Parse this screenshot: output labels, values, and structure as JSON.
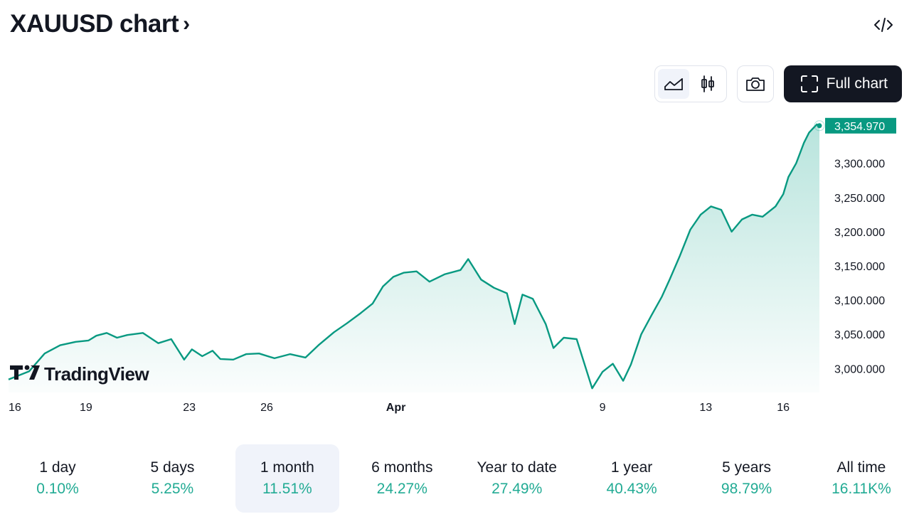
{
  "header": {
    "title": "XAUUSD chart",
    "chevron": "›",
    "embed_icon": "code-icon"
  },
  "toolbar": {
    "chart_types": [
      {
        "name": "area-chart-icon",
        "active": true
      },
      {
        "name": "candles-icon",
        "active": false
      }
    ],
    "snapshot_icon": "camera-icon",
    "full_chart_icon": "fullscreen-icon",
    "full_chart_label": "Full chart"
  },
  "watermark": {
    "text": "TradingView"
  },
  "colors": {
    "accent": "#22ab94",
    "line": "#089981",
    "text": "#131722",
    "button_dark": "#131722"
  },
  "periods": [
    {
      "label": "1 day",
      "value": "0.10%",
      "active": false
    },
    {
      "label": "5 days",
      "value": "5.25%",
      "active": false
    },
    {
      "label": "1 month",
      "value": "11.51%",
      "active": true
    },
    {
      "label": "6 months",
      "value": "24.27%",
      "active": false
    },
    {
      "label": "Year to date",
      "value": "27.49%",
      "active": false
    },
    {
      "label": "1 year",
      "value": "40.43%",
      "active": false
    },
    {
      "label": "5 years",
      "value": "98.79%",
      "active": false
    },
    {
      "label": "All time",
      "value": "16.11K%",
      "active": false
    }
  ],
  "chart_data": {
    "type": "area",
    "symbol": "XAUUSD",
    "last_value_label": "3,354.970",
    "ylim": [
      2965,
      3360
    ],
    "y_ticks": [
      {
        "value": 3300,
        "label": "3,300.000"
      },
      {
        "value": 3250,
        "label": "3,250.000"
      },
      {
        "value": 3200,
        "label": "3,200.000"
      },
      {
        "value": 3150,
        "label": "3,150.000"
      },
      {
        "value": 3100,
        "label": "3,100.000"
      },
      {
        "value": 3050,
        "label": "3,050.000"
      },
      {
        "value": 3000,
        "label": "3,000.000"
      }
    ],
    "x_ticks": [
      {
        "t": 0,
        "label": "16",
        "bold": false
      },
      {
        "t": 3,
        "label": "19",
        "bold": false
      },
      {
        "t": 7,
        "label": "23",
        "bold": false
      },
      {
        "t": 10,
        "label": "26",
        "bold": false
      },
      {
        "t": 15,
        "label": "Apr",
        "bold": true
      },
      {
        "t": 23,
        "label": "9",
        "bold": false
      },
      {
        "t": 27,
        "label": "13",
        "bold": false
      },
      {
        "t": 30,
        "label": "16",
        "bold": false
      }
    ],
    "grid": false,
    "series": [
      {
        "x": [
          0,
          0.8,
          1.4,
          2.0,
          2.6,
          3.1,
          3.4,
          3.8,
          4.2,
          4.6,
          5.2,
          5.8,
          6.3,
          6.8,
          7.1,
          7.5,
          7.9,
          8.2,
          8.7,
          9.2,
          9.7,
          10.3,
          10.9,
          11.5,
          12.0,
          12.6,
          13.1,
          13.6,
          14.1,
          14.5,
          14.9,
          15.3,
          15.8,
          16.3,
          16.9,
          17.5,
          17.8,
          18.3,
          18.8,
          19.3,
          19.6,
          19.9,
          20.3,
          20.8,
          21.1,
          21.5,
          22.0,
          22.6,
          23.0,
          23.4,
          23.8,
          24.1,
          24.5,
          24.9,
          25.3,
          25.6,
          26.0,
          26.4,
          26.8,
          27.2,
          27.6,
          28.0,
          28.4,
          28.8,
          29.2,
          29.7,
          30.0,
          30.2,
          30.5,
          30.8,
          31.0,
          31.3,
          31.4
        ],
        "values": [
          2984,
          2996,
          3022,
          3034,
          3039,
          3041,
          3048,
          3052,
          3045,
          3049,
          3052,
          3037,
          3043,
          3013,
          3028,
          3018,
          3026,
          3014,
          3013,
          3021,
          3022,
          3015,
          3021,
          3016,
          3034,
          3053,
          3066,
          3080,
          3095,
          3120,
          3134,
          3140,
          3142,
          3127,
          3138,
          3144,
          3160,
          3130,
          3118,
          3110,
          3065,
          3108,
          3102,
          3065,
          3030,
          3045,
          3043,
          2971,
          2995,
          3007,
          2982,
          3006,
          3050,
          3078,
          3105,
          3130,
          3165,
          3203,
          3225,
          3237,
          3232,
          3200,
          3218,
          3225,
          3222,
          3237,
          3255,
          3280,
          3300,
          3330,
          3345,
          3357,
          3355
        ]
      }
    ]
  }
}
